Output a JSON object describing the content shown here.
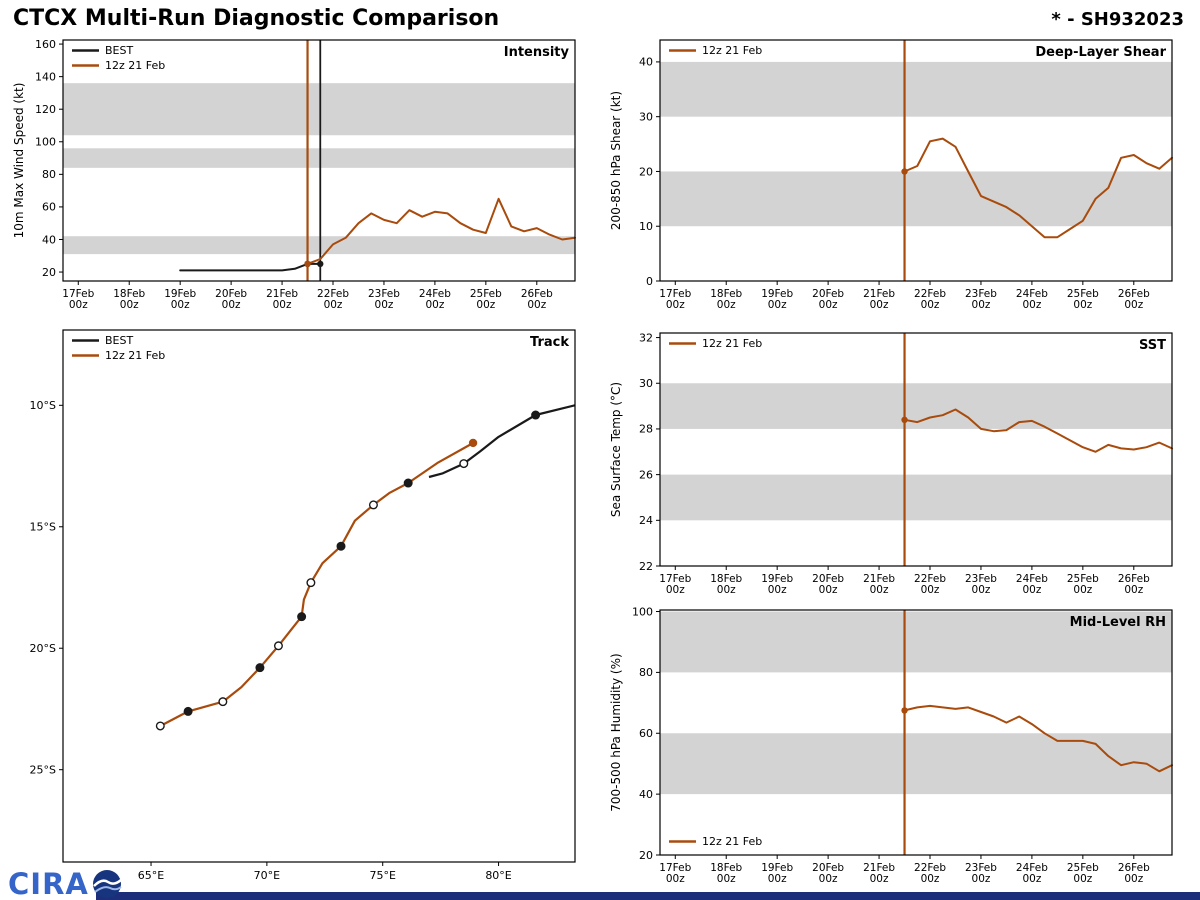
{
  "header": {
    "title": "CTCX Multi-Run Diagnostic Comparison",
    "storm_id": "* - SH932023"
  },
  "colors": {
    "model": "#a84b0d",
    "best": "#1a1a1a",
    "band": "#d3d3d3",
    "frame": "#000000",
    "footer_bar": "#1c2e7a",
    "logo_blue": "#3565c8",
    "logo_globe": "#17357e"
  },
  "legend": {
    "best": "BEST",
    "model": "12z 21 Feb"
  },
  "time_axis": {
    "tick_labels": [
      [
        "17Feb",
        "00z"
      ],
      [
        "18Feb",
        "00z"
      ],
      [
        "19Feb",
        "00z"
      ],
      [
        "20Feb",
        "00z"
      ],
      [
        "21Feb",
        "00z"
      ],
      [
        "22Feb",
        "00z"
      ],
      [
        "23Feb",
        "00z"
      ],
      [
        "24Feb",
        "00z"
      ],
      [
        "25Feb",
        "00z"
      ],
      [
        "26Feb",
        "00z"
      ]
    ]
  },
  "footer": {
    "logo_text": "CIRA"
  },
  "chart_data": [
    {
      "id": "intensity",
      "type": "line",
      "title": "Intensity",
      "ylabel": "10m Max Wind Speed (kt)",
      "ylim": [
        14.5,
        162.5
      ],
      "yticks": [
        20,
        40,
        60,
        80,
        100,
        120,
        140,
        160
      ],
      "shaded_bands": [
        [
          31,
          42
        ],
        [
          84,
          96
        ],
        [
          104,
          136
        ]
      ],
      "x_axis": "time_days_since_17Feb00z",
      "series": [
        {
          "key": "best",
          "t_start": 2.0,
          "t_step": 0.25,
          "values": [
            21,
            21,
            21,
            21,
            21,
            21,
            21,
            21,
            21,
            22,
            25,
            25
          ],
          "dot_indices": [
            10,
            11
          ]
        },
        {
          "key": "model",
          "t_start": 4.5,
          "t_step": 0.25,
          "values": [
            25,
            28,
            37,
            41,
            50,
            56,
            52,
            50,
            58,
            54,
            57,
            56,
            50,
            46,
            44,
            65,
            48,
            45,
            47,
            43,
            40,
            41
          ],
          "dot_indices": [
            0
          ]
        }
      ],
      "vlines": [
        {
          "t": 4.5,
          "color_key": "model"
        },
        {
          "t": 4.75,
          "color_key": "best"
        }
      ],
      "legend_items": [
        "best",
        "model"
      ],
      "legend_pos": "top-left"
    },
    {
      "id": "shear",
      "type": "line",
      "title": "Deep-Layer Shear",
      "ylabel": "200-850 hPa Shear (kt)",
      "ylim": [
        0,
        44
      ],
      "yticks": [
        0,
        10,
        20,
        30,
        40
      ],
      "shaded_bands": [
        [
          10,
          20
        ],
        [
          30,
          40
        ]
      ],
      "x_axis": "time_days_since_17Feb00z",
      "series": [
        {
          "key": "model",
          "t_start": 4.5,
          "t_step": 0.25,
          "values": [
            20,
            21,
            25.5,
            26,
            24.5,
            20,
            15.5,
            14.5,
            13.5,
            12,
            10,
            8,
            8,
            9.5,
            11,
            15,
            17,
            22.5,
            23,
            21.5,
            20.5,
            22.5
          ],
          "dot_indices": [
            0
          ]
        }
      ],
      "vlines": [
        {
          "t": 4.5,
          "color_key": "model"
        }
      ],
      "legend_items": [
        "model"
      ],
      "legend_pos": "top-left"
    },
    {
      "id": "sst",
      "type": "line",
      "title": "SST",
      "ylabel": "Sea Surface Temp (°C)",
      "ylim": [
        22,
        32.2
      ],
      "yticks": [
        22,
        24,
        26,
        28,
        30,
        32
      ],
      "shaded_bands": [
        [
          24,
          26
        ],
        [
          28,
          30
        ]
      ],
      "x_axis": "time_days_since_17Feb00z",
      "series": [
        {
          "key": "model",
          "t_start": 4.5,
          "t_step": 0.25,
          "values": [
            28.4,
            28.3,
            28.5,
            28.6,
            28.85,
            28.5,
            28.0,
            27.9,
            27.95,
            28.3,
            28.35,
            28.1,
            27.8,
            27.5,
            27.2,
            27.0,
            27.3,
            27.15,
            27.1,
            27.2,
            27.4,
            27.15
          ],
          "dot_indices": [
            0
          ]
        }
      ],
      "vlines": [
        {
          "t": 4.5,
          "color_key": "model"
        }
      ],
      "legend_items": [
        "model"
      ],
      "legend_pos": "top-left"
    },
    {
      "id": "rh",
      "type": "line",
      "title": "Mid-Level RH",
      "ylabel": "700-500 hPa Humidity (%)",
      "ylim": [
        20,
        100.5
      ],
      "yticks": [
        20,
        40,
        60,
        80,
        100
      ],
      "shaded_bands": [
        [
          40,
          60
        ],
        [
          80,
          100
        ]
      ],
      "x_axis": "time_days_since_17Feb00z",
      "series": [
        {
          "key": "model",
          "t_start": 4.5,
          "t_step": 0.25,
          "values": [
            67.5,
            68.5,
            69,
            68.5,
            68,
            68.5,
            67,
            65.5,
            63.5,
            65.5,
            63,
            60,
            57.5,
            57.5,
            57.5,
            56.5,
            52.5,
            49.5,
            50.5,
            50,
            47.5,
            49.5
          ],
          "dot_indices": [
            0
          ]
        }
      ],
      "vlines": [
        {
          "t": 4.5,
          "color_key": "model"
        }
      ],
      "legend_items": [
        "model"
      ],
      "legend_pos": "bottom-left"
    },
    {
      "id": "track",
      "type": "track",
      "title": "Track",
      "lon_lim": [
        61.2,
        83.3
      ],
      "lat_lim": [
        -28.8,
        -6.9
      ],
      "lon_ticks": [
        {
          "v": 65,
          "label": "65°E"
        },
        {
          "v": 70,
          "label": "70°E"
        },
        {
          "v": 75,
          "label": "75°E"
        },
        {
          "v": 80,
          "label": "80°E"
        }
      ],
      "lat_ticks": [
        {
          "v": -10,
          "label": "10°S"
        },
        {
          "v": -15,
          "label": "15°S"
        },
        {
          "v": -20,
          "label": "20°S"
        },
        {
          "v": -25,
          "label": "25°S"
        }
      ],
      "best_line": [
        [
          83.3,
          -10.0
        ],
        [
          81.6,
          -10.4
        ],
        [
          80.0,
          -11.3
        ],
        [
          79.2,
          -11.9
        ],
        [
          78.5,
          -12.4
        ],
        [
          77.6,
          -12.8
        ],
        [
          77.0,
          -12.95
        ]
      ],
      "best_markers": [
        {
          "lon": 81.6,
          "lat": -10.4,
          "filled": true
        },
        {
          "lon": 78.5,
          "lat": -12.4,
          "filled": false
        }
      ],
      "model_line": [
        [
          78.9,
          -11.55
        ],
        [
          77.4,
          -12.35
        ],
        [
          76.1,
          -13.2
        ],
        [
          75.3,
          -13.6
        ],
        [
          74.6,
          -14.1
        ],
        [
          73.8,
          -14.75
        ],
        [
          73.2,
          -15.8
        ],
        [
          72.4,
          -16.5
        ],
        [
          71.9,
          -17.3
        ],
        [
          71.6,
          -18.0
        ],
        [
          71.5,
          -18.7
        ],
        [
          71.0,
          -19.3
        ],
        [
          70.5,
          -19.9
        ],
        [
          69.7,
          -20.8
        ],
        [
          68.9,
          -21.6
        ],
        [
          68.1,
          -22.2
        ],
        [
          66.6,
          -22.6
        ],
        [
          65.4,
          -23.2
        ]
      ],
      "model_markers": [
        {
          "lon": 76.1,
          "lat": -13.2,
          "filled": true
        },
        {
          "lon": 74.6,
          "lat": -14.1,
          "filled": false
        },
        {
          "lon": 73.2,
          "lat": -15.8,
          "filled": true
        },
        {
          "lon": 71.9,
          "lat": -17.3,
          "filled": false
        },
        {
          "lon": 71.5,
          "lat": -18.7,
          "filled": true
        },
        {
          "lon": 70.5,
          "lat": -19.9,
          "filled": false
        },
        {
          "lon": 69.7,
          "lat": -20.8,
          "filled": true
        },
        {
          "lon": 68.1,
          "lat": -22.2,
          "filled": false
        },
        {
          "lon": 66.6,
          "lat": -22.6,
          "filled": true
        },
        {
          "lon": 65.4,
          "lat": -23.2,
          "filled": false
        }
      ],
      "init_marker": {
        "lon": 78.9,
        "lat": -11.55
      },
      "legend_items": [
        "best",
        "model"
      ],
      "legend_pos": "top-left"
    }
  ]
}
